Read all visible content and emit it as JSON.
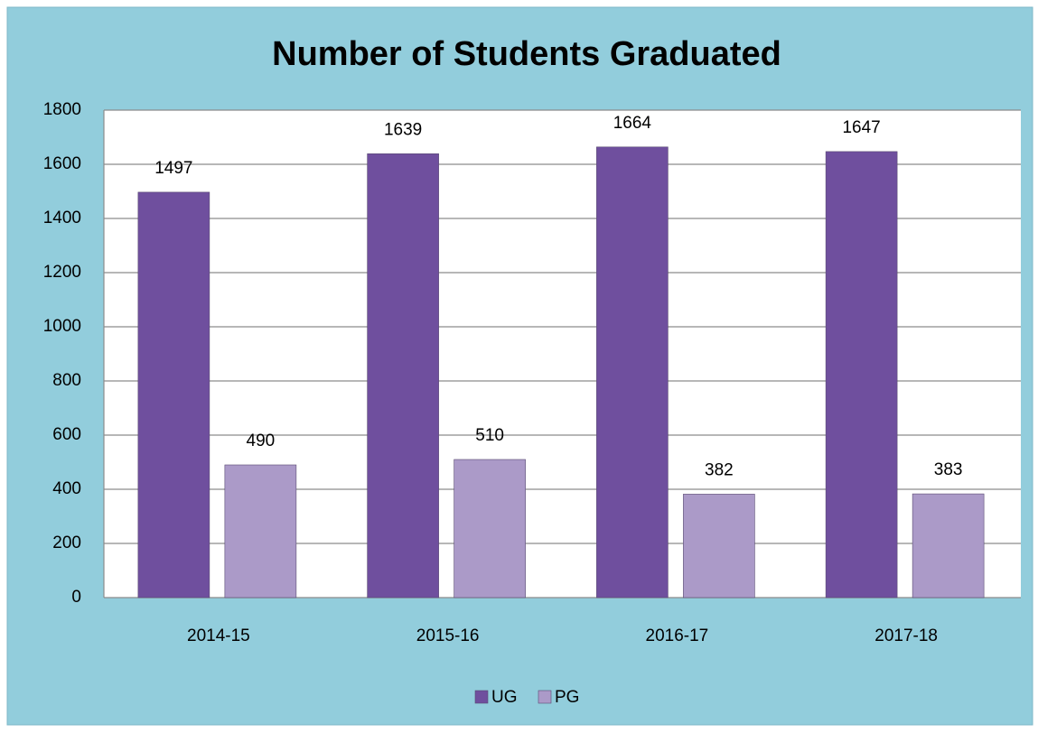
{
  "chart_data": {
    "type": "bar",
    "title": "Number of Students Graduated",
    "categories": [
      "2014-15",
      "2015-16",
      "2016-17",
      "2017-18"
    ],
    "series": [
      {
        "name": "UG",
        "color": "#6f4f9e",
        "values": [
          1497,
          1639,
          1664,
          1647
        ]
      },
      {
        "name": "PG",
        "color": "#ab9ac8",
        "values": [
          490,
          510,
          382,
          383
        ]
      }
    ],
    "ylim": [
      0,
      1800
    ],
    "yticks": [
      0,
      200,
      400,
      600,
      800,
      1000,
      1200,
      1400,
      1600,
      1800
    ],
    "grid": true,
    "legend": "bottom"
  }
}
